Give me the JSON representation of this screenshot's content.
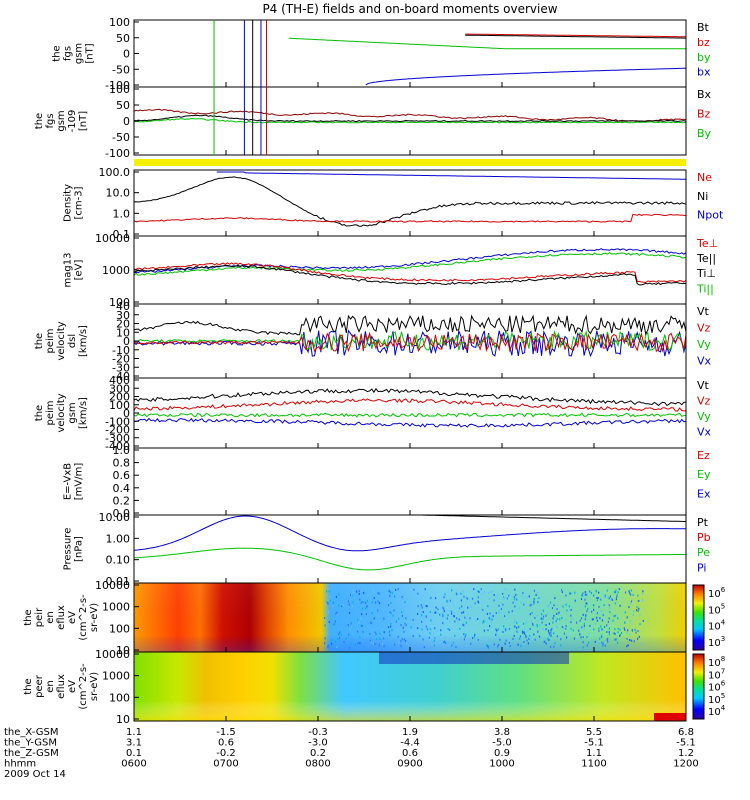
{
  "title": "P4 (TH-E) fields and on-board moments overview",
  "chart_data": {
    "type": "line",
    "title": "P4 (TH-E) fields and on-board moments overview",
    "x_axis": {
      "ticks": [
        "0600",
        "0700",
        "0800",
        "0900",
        "1000",
        "1100",
        "1200"
      ],
      "range": [
        "06:00",
        "12:00"
      ],
      "date": "2009 Oct 14",
      "ephemeris": [
        {
          "label": "the_X-GSM",
          "values": [
            "1.1",
            "-1.5",
            "-0.3",
            "1.9",
            "3.8",
            "5.5",
            "6.8"
          ]
        },
        {
          "label": "the_Y-GSM",
          "values": [
            "3.1",
            "0.6",
            "-3.0",
            "-4.4",
            "-5.0",
            "-5.1",
            "-5.1"
          ]
        },
        {
          "label": "the_Z-GSM",
          "values": [
            "0.1",
            "-0.2",
            "0.2",
            "0.6",
            "0.9",
            "1.1",
            "1.2"
          ]
        },
        {
          "label": "hhmm",
          "values": [
            "0600",
            "0700",
            "0800",
            "0900",
            "1000",
            "1100",
            "1200"
          ]
        }
      ]
    },
    "panels": [
      {
        "ylabel": [
          "the",
          "fgs",
          "gsm",
          "[nT]"
        ],
        "yticks": [
          "100",
          "50",
          "0",
          "-50",
          "-100"
        ],
        "ylim": [
          -100,
          100
        ],
        "legend": [
          {
            "name": "Bt",
            "color": "#000000"
          },
          {
            "name": "bz",
            "color": "#d40000"
          },
          {
            "name": "by",
            "color": "#00c000"
          },
          {
            "name": "bx",
            "color": "#0000d0"
          }
        ]
      },
      {
        "ylabel": [
          "the",
          "fgs",
          "gsm",
          "-109",
          "[nT]"
        ],
        "yticks": [
          "100",
          "50",
          "0",
          "-50",
          "-100"
        ],
        "ylim": [
          -120,
          120
        ],
        "legend": [
          {
            "name": "Bx",
            "color": "#000000"
          },
          {
            "name": "Bz",
            "color": "#d40000"
          },
          {
            "name": "By",
            "color": "#00c000"
          }
        ]
      },
      {
        "ylabel": [
          "Density",
          "[cm-3]"
        ],
        "yticks": [
          "100.0",
          "10.0",
          "1.0",
          "0.1"
        ],
        "ylim": [
          0.1,
          200
        ],
        "scale": "log",
        "legend": [
          {
            "name": "Ne",
            "color": "#d40000"
          },
          {
            "name": "Ni",
            "color": "#000000"
          },
          {
            "name": "Npot",
            "color": "#0000d0"
          }
        ]
      },
      {
        "ylabel": [
          "mag13",
          "[eV]"
        ],
        "yticks": [
          "10000",
          "1000",
          "100"
        ],
        "ylim": [
          30,
          10000
        ],
        "scale": "log",
        "legend": [
          {
            "name": "Te⊥",
            "color": "#d40000"
          },
          {
            "name": "Te||",
            "color": "#000000"
          },
          {
            "name": "Ti⊥",
            "color": "#000000"
          },
          {
            "name": "Ti||",
            "color": "#00c000"
          }
        ]
      },
      {
        "ylabel": [
          "the",
          "peim",
          "velocity",
          "dsl",
          "[km/s]"
        ],
        "yticks": [
          "40",
          "30",
          "20",
          "10",
          "0",
          "-10",
          "-20",
          "-30",
          "-40"
        ],
        "ylim": [
          -40,
          40
        ],
        "legend": [
          {
            "name": "Vt",
            "color": "#000000"
          },
          {
            "name": "Vz",
            "color": "#d40000"
          },
          {
            "name": "Vy",
            "color": "#00c000"
          },
          {
            "name": "Vx",
            "color": "#0000d0"
          }
        ]
      },
      {
        "ylabel": [
          "the",
          "peim",
          "velocity",
          "gsm",
          "[km/s]"
        ],
        "yticks": [
          "400",
          "300",
          "200",
          "100",
          "0",
          "-100",
          "-200",
          "-300",
          "-400"
        ],
        "ylim": [
          -400,
          400
        ],
        "legend": [
          {
            "name": "Vt",
            "color": "#000000"
          },
          {
            "name": "Vz",
            "color": "#d40000"
          },
          {
            "name": "Vy",
            "color": "#00c000"
          },
          {
            "name": "Vx",
            "color": "#0000d0"
          }
        ]
      },
      {
        "ylabel": [
          "E=-VxB",
          "[mV/m]"
        ],
        "yticks": [
          "1.0",
          "0.8",
          "0.6",
          "0.4",
          "0.2",
          "0.0"
        ],
        "ylim": [
          0,
          1
        ],
        "legend": [
          {
            "name": "Ez",
            "color": "#d40000"
          },
          {
            "name": "Ey",
            "color": "#00c000"
          },
          {
            "name": "Ex",
            "color": "#0000d0"
          }
        ]
      },
      {
        "ylabel": [
          "Pressure",
          "[nPa]"
        ],
        "yticks": [
          "10.00",
          "1.00",
          "0.10",
          "0.01"
        ],
        "ylim": [
          0.003,
          10
        ],
        "scale": "log",
        "legend": [
          {
            "name": "Pt",
            "color": "#000000"
          },
          {
            "name": "Pb",
            "color": "#d40000"
          },
          {
            "name": "Pe",
            "color": "#00c000"
          },
          {
            "name": "Pi",
            "color": "#0000d0"
          }
        ]
      },
      {
        "ylabel": [
          "the",
          "peir",
          "en",
          "eflux",
          "eV",
          "(cm^2-s-",
          "sr-eV)"
        ],
        "yticks": [
          "10000",
          "1000",
          "100",
          "10"
        ],
        "type": "spectrogram",
        "colorbar": [
          "10^6",
          "10^5",
          "10^4",
          "10^3"
        ]
      },
      {
        "ylabel": [
          "the",
          "peer",
          "en",
          "eflux",
          "eV",
          "(cm^2-s-",
          "sr-eV)"
        ],
        "yticks": [
          "10000",
          "1000",
          "100",
          "10"
        ],
        "type": "spectrogram",
        "colorbar": [
          "10^8",
          "10^7",
          "10^6",
          "10^5",
          "10^4"
        ]
      }
    ]
  }
}
